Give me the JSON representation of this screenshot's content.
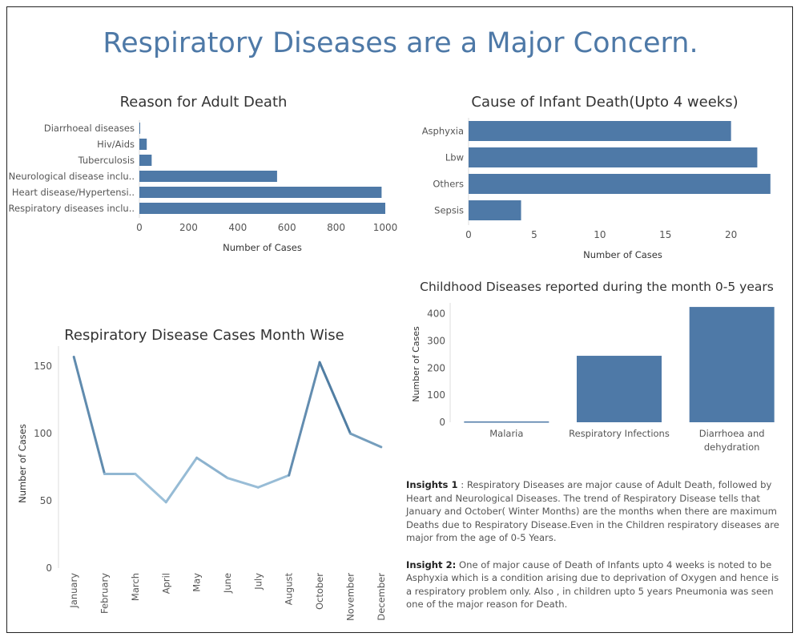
{
  "dashboard": {
    "title": "Respiratory Diseases are a Major Concern."
  },
  "insights": [
    {
      "label": "Insights 1",
      "text": " : Respiratory Diseases are major cause of Adult Death, followed by Heart and Neurological Diseases. The trend of Respiratory Disease tells that January and October( Winter Months) are the months when there are maximum Deaths due to Respiratory Disease.Even in the Children respiratory diseases are major from the age of 0-5 Years."
    },
    {
      "label": "Insight 2:",
      "text": " One of  major cause of Death of Infants upto 4 weeks is noted to be Asphyxia which is a condition arising due to  deprivation of Oxygen and hence is a respiratory problem only. Also , in children upto 5 years Pneumonia was seen one of the major reason for Death."
    }
  ],
  "chart_data": [
    {
      "id": "adult",
      "type": "bar",
      "orientation": "horizontal",
      "title": "Reason for Adult Death",
      "categories": [
        "Diarrhoeal diseases",
        "Hiv/Aids",
        "Tuberculosis",
        "Neurological disease inclu..",
        "Heart disease/Hypertensi..",
        "Respiratory diseases inclu.."
      ],
      "values": [
        3,
        30,
        50,
        560,
        985,
        1000
      ],
      "xlabel": "Number of Cases",
      "ylabel": "",
      "xlim": [
        0,
        1000
      ],
      "xticks": [
        0,
        200,
        400,
        600,
        800,
        1000
      ],
      "color": "#4e79a7"
    },
    {
      "id": "infant",
      "type": "bar",
      "orientation": "horizontal",
      "title": "Cause of Infant Death(Upto 4 weeks)",
      "categories": [
        "Asphyxia",
        "Lbw",
        "Others",
        "Sepsis"
      ],
      "values": [
        20,
        22,
        23,
        4
      ],
      "xlabel": "Number of Cases",
      "ylabel": "",
      "xlim": [
        0,
        23.5
      ],
      "xticks": [
        0,
        5,
        10,
        15,
        20
      ],
      "color": "#4e79a7"
    },
    {
      "id": "monthly",
      "type": "line",
      "title": "Respiratory Disease Cases Month Wise",
      "categories": [
        "January",
        "February",
        "March",
        "April",
        "May",
        "June",
        "July",
        "August",
        "October",
        "November",
        "December"
      ],
      "values": [
        157,
        70,
        70,
        49,
        82,
        67,
        60,
        69,
        153,
        100,
        90
      ],
      "xlabel": "",
      "ylabel": "Number of Cases",
      "ylim": [
        0,
        165
      ],
      "yticks": [
        0,
        50,
        100,
        150
      ],
      "color_low": "#a9cce3",
      "color_high": "#2f5f8a"
    },
    {
      "id": "childhood",
      "type": "bar",
      "orientation": "vertical",
      "title": "Childhood Diseases reported during the month 0-5 years",
      "categories": [
        "Malaria",
        "Respiratory Infections",
        "Diarrhoea and dehydration"
      ],
      "values": [
        3,
        245,
        425
      ],
      "xlabel": "",
      "ylabel": "Number of Cases",
      "ylim": [
        0,
        440
      ],
      "yticks": [
        0,
        100,
        200,
        300,
        400
      ],
      "color": "#4e79a7"
    }
  ]
}
